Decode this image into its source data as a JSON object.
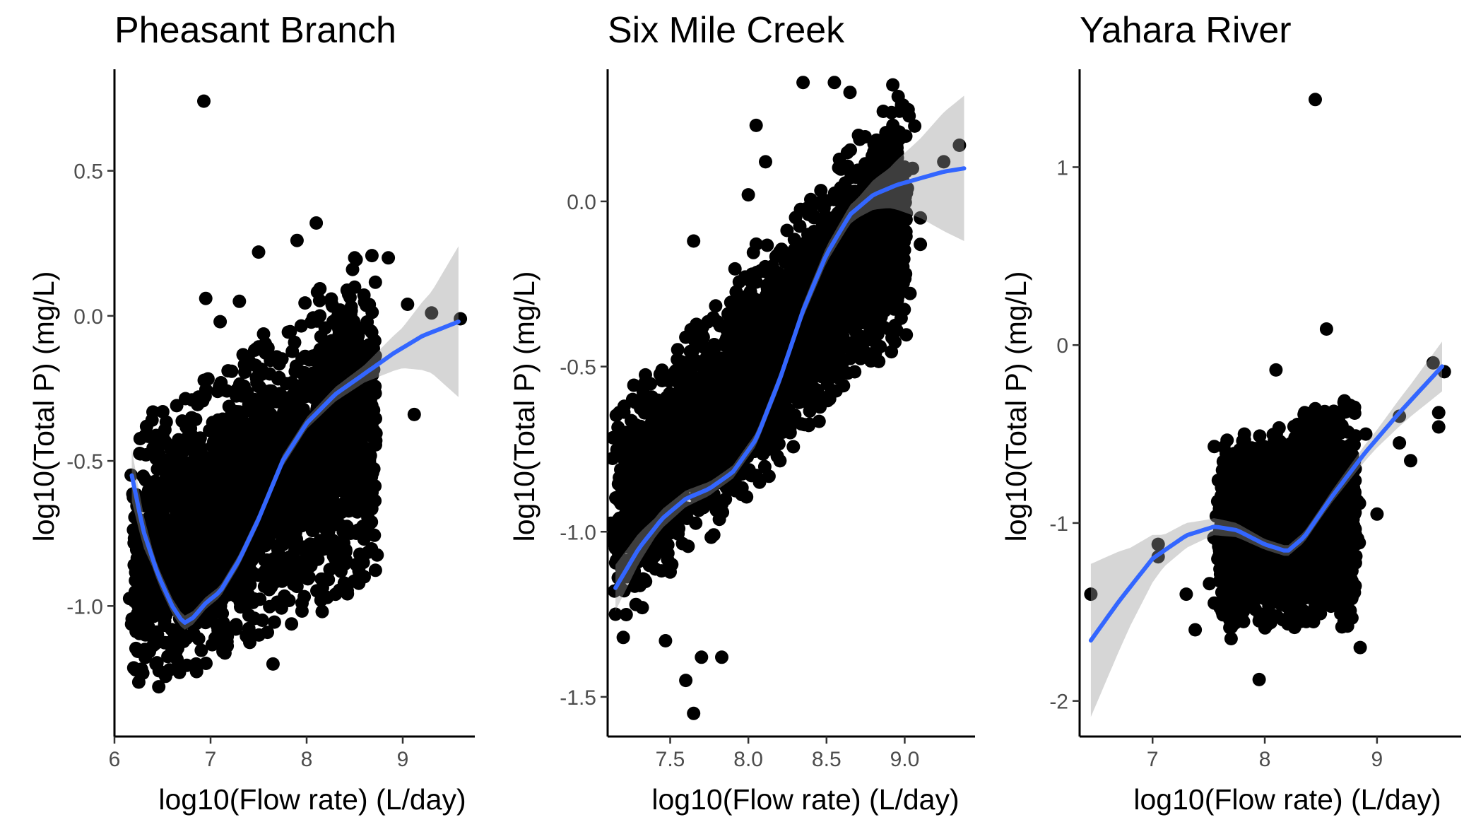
{
  "colors": {
    "points": "#000000",
    "smooth_line": "#3366FF",
    "ribbon": "#999999"
  },
  "chart_data": [
    {
      "type": "scatter",
      "title": "Pheasant Branch",
      "xlabel": "log10(Flow rate) (L/day)",
      "ylabel": "log10(Total P) (mg/L)",
      "xlim": [
        6.0,
        9.75
      ],
      "ylim": [
        -1.45,
        0.85
      ],
      "xticks": [
        6,
        7,
        8,
        9
      ],
      "xtick_labels": [
        "6",
        "7",
        "8",
        "9"
      ],
      "yticks": [
        -1.0,
        -0.5,
        0.0,
        0.5
      ],
      "ytick_labels": [
        "-1.0",
        "-0.5",
        "0.0",
        "0.5"
      ],
      "cloud": {
        "x_range": [
          6.2,
          8.7
        ],
        "y_low_at_xmin": -1.35,
        "y_high_at_xmin": -0.4,
        "y_low_at_xmax": -0.9,
        "y_high_at_xmax": 0.2,
        "count": 2500
      },
      "outliers": [
        [
          6.93,
          0.74
        ],
        [
          9.3,
          0.01
        ],
        [
          9.6,
          -0.01
        ],
        [
          9.05,
          0.04
        ],
        [
          9.12,
          -0.34
        ],
        [
          8.1,
          0.32
        ],
        [
          8.85,
          0.2
        ],
        [
          6.22,
          -1.22
        ],
        [
          6.85,
          -1.2
        ],
        [
          7.6,
          -0.4
        ],
        [
          7.1,
          -0.02
        ],
        [
          7.5,
          0.22
        ],
        [
          8.3,
          -0.79
        ],
        [
          8.72,
          -0.43
        ],
        [
          8.65,
          -0.1
        ],
        [
          8.5,
          0.2
        ],
        [
          7.9,
          0.26
        ],
        [
          7.65,
          -1.2
        ],
        [
          6.95,
          0.06
        ],
        [
          7.3,
          0.05
        ]
      ],
      "smooth": [
        [
          6.18,
          -0.55
        ],
        [
          6.3,
          -0.74
        ],
        [
          6.45,
          -0.89
        ],
        [
          6.6,
          -1.0
        ],
        [
          6.72,
          -1.06
        ],
        [
          6.82,
          -1.04
        ],
        [
          6.95,
          -0.99
        ],
        [
          7.1,
          -0.95
        ],
        [
          7.3,
          -0.84
        ],
        [
          7.5,
          -0.7
        ],
        [
          7.75,
          -0.5
        ],
        [
          8.0,
          -0.37
        ],
        [
          8.3,
          -0.27
        ],
        [
          8.6,
          -0.2
        ],
        [
          8.9,
          -0.13
        ],
        [
          9.2,
          -0.07
        ],
        [
          9.58,
          -0.02
        ]
      ],
      "ribbon_halfwidth": [
        [
          6.18,
          0.09
        ],
        [
          6.4,
          0.03
        ],
        [
          7.0,
          0.02
        ],
        [
          8.0,
          0.02
        ],
        [
          8.6,
          0.03
        ],
        [
          9.0,
          0.07
        ],
        [
          9.3,
          0.14
        ],
        [
          9.58,
          0.26
        ]
      ]
    },
    {
      "type": "scatter",
      "title": "Six Mile Creek",
      "xlabel": "log10(Flow rate) (L/day)",
      "ylabel": "log10(Total P) (mg/L)",
      "xlim": [
        7.1,
        9.45
      ],
      "ylim": [
        -1.62,
        0.4
      ],
      "xticks": [
        7.5,
        8.0,
        8.5,
        9.0
      ],
      "xtick_labels": [
        "7.5",
        "8.0",
        "8.5",
        "9.0"
      ],
      "yticks": [
        -1.5,
        -1.0,
        -0.5,
        0.0
      ],
      "ytick_labels": [
        "-1.5",
        "-1.0",
        "-0.5",
        "0.0"
      ],
      "cloud": {
        "x_range": [
          7.15,
          9.0
        ],
        "y_low_at_xmin": -1.3,
        "y_high_at_xmin": -0.65,
        "y_low_at_xmax": -0.4,
        "y_high_at_xmax": 0.35,
        "count": 3000
      },
      "outliers": [
        [
          7.65,
          -1.55
        ],
        [
          7.6,
          -1.45
        ],
        [
          7.7,
          -1.38
        ],
        [
          7.83,
          -1.38
        ],
        [
          7.47,
          -1.33
        ],
        [
          7.15,
          -1.05
        ],
        [
          7.18,
          -1.1
        ],
        [
          7.2,
          -1.32
        ],
        [
          7.65,
          -0.12
        ],
        [
          8.0,
          0.02
        ],
        [
          8.05,
          0.23
        ],
        [
          8.11,
          0.12
        ],
        [
          8.35,
          0.36
        ],
        [
          8.55,
          0.36
        ],
        [
          8.65,
          0.33
        ],
        [
          8.9,
          0.18
        ],
        [
          9.05,
          0.1
        ],
        [
          9.25,
          0.12
        ],
        [
          9.35,
          0.17
        ],
        [
          9.1,
          -0.13
        ],
        [
          9.1,
          -0.05
        ],
        [
          8.95,
          -0.28
        ],
        [
          8.9,
          -0.15
        ]
      ],
      "smooth": [
        [
          7.15,
          -1.17
        ],
        [
          7.3,
          -1.05
        ],
        [
          7.45,
          -0.96
        ],
        [
          7.6,
          -0.9
        ],
        [
          7.75,
          -0.87
        ],
        [
          7.9,
          -0.82
        ],
        [
          8.05,
          -0.72
        ],
        [
          8.2,
          -0.54
        ],
        [
          8.35,
          -0.33
        ],
        [
          8.5,
          -0.16
        ],
        [
          8.65,
          -0.04
        ],
        [
          8.8,
          0.02
        ],
        [
          8.95,
          0.05
        ],
        [
          9.1,
          0.07
        ],
        [
          9.25,
          0.09
        ],
        [
          9.38,
          0.1
        ]
      ],
      "ribbon_halfwidth": [
        [
          7.15,
          0.07
        ],
        [
          7.4,
          0.03
        ],
        [
          7.8,
          0.02
        ],
        [
          8.3,
          0.02
        ],
        [
          8.7,
          0.03
        ],
        [
          8.9,
          0.06
        ],
        [
          9.1,
          0.12
        ],
        [
          9.25,
          0.18
        ],
        [
          9.38,
          0.22
        ]
      ]
    },
    {
      "type": "scatter",
      "title": "Yahara River",
      "xlabel": "log10(Flow rate) (L/day)",
      "ylabel": "log10(Total P) (mg/L)",
      "xlim": [
        6.35,
        9.75
      ],
      "ylim": [
        -2.2,
        1.55
      ],
      "xticks": [
        7,
        8,
        9
      ],
      "xtick_labels": [
        "7",
        "8",
        "9"
      ],
      "yticks": [
        -2,
        -1,
        0,
        1
      ],
      "ytick_labels": [
        "-2",
        "-1",
        "0",
        "1"
      ],
      "cloud": {
        "x_range": [
          7.6,
          8.8
        ],
        "y_low_at_xmin": -1.6,
        "y_high_at_xmin": -0.55,
        "y_low_at_xmax": -1.55,
        "y_high_at_xmax": -0.3,
        "count": 2200
      },
      "outliers": [
        [
          6.45,
          -1.4
        ],
        [
          7.05,
          -1.12
        ],
        [
          7.05,
          -1.19
        ],
        [
          7.38,
          -1.6
        ],
        [
          7.3,
          -1.4
        ],
        [
          7.55,
          -1.45
        ],
        [
          7.55,
          -0.57
        ],
        [
          7.7,
          -1.65
        ],
        [
          7.95,
          -1.88
        ],
        [
          8.45,
          1.38
        ],
        [
          8.55,
          0.09
        ],
        [
          8.85,
          -1.7
        ],
        [
          9.0,
          -0.95
        ],
        [
          9.2,
          -0.4
        ],
        [
          9.3,
          -0.65
        ],
        [
          9.5,
          -0.1
        ],
        [
          9.55,
          -0.38
        ],
        [
          9.6,
          -0.15
        ],
        [
          9.55,
          -0.46
        ],
        [
          8.1,
          -0.14
        ],
        [
          8.9,
          -0.5
        ],
        [
          9.2,
          -0.55
        ]
      ],
      "smooth": [
        [
          6.45,
          -1.66
        ],
        [
          6.7,
          -1.44
        ],
        [
          7.0,
          -1.2
        ],
        [
          7.3,
          -1.07
        ],
        [
          7.55,
          -1.02
        ],
        [
          7.75,
          -1.04
        ],
        [
          8.0,
          -1.12
        ],
        [
          8.2,
          -1.16
        ],
        [
          8.35,
          -1.08
        ],
        [
          8.6,
          -0.85
        ],
        [
          8.9,
          -0.6
        ],
        [
          9.2,
          -0.38
        ],
        [
          9.58,
          -0.12
        ]
      ],
      "ribbon_halfwidth": [
        [
          6.45,
          0.43
        ],
        [
          6.8,
          0.22
        ],
        [
          7.1,
          0.09
        ],
        [
          7.5,
          0.05
        ],
        [
          8.0,
          0.03
        ],
        [
          8.5,
          0.03
        ],
        [
          9.0,
          0.05
        ],
        [
          9.3,
          0.09
        ],
        [
          9.58,
          0.14
        ]
      ]
    }
  ]
}
